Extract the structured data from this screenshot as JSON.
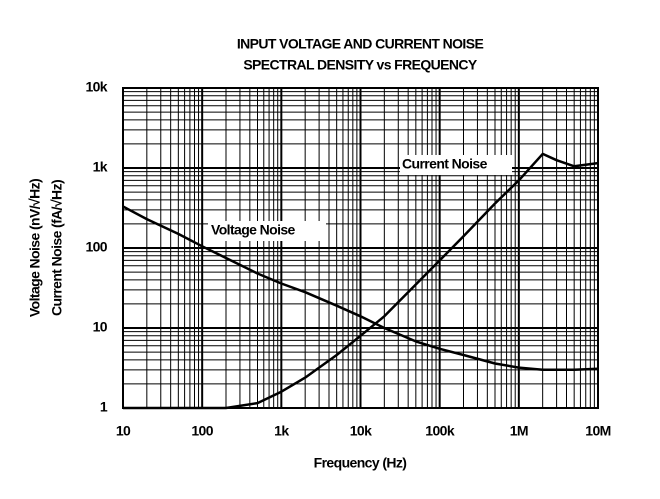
{
  "chart_data": {
    "type": "line",
    "title": "INPUT VOLTAGE AND CURRENT NOISE",
    "subtitle": "SPECTRAL DENSITY vs FREQUENCY",
    "x_label": "Frequency (Hz)",
    "y_labels": [
      "Voltage Noise (nV/√Hz)",
      "Current Noise (fA/√Hz)"
    ],
    "annotations": [
      "Current Noise",
      "Voltage Noise"
    ],
    "x": [
      10,
      20,
      50,
      100,
      200,
      500,
      1000,
      2000,
      5000,
      10000,
      20000,
      50000,
      100000,
      200000,
      500000,
      1000000,
      2000000,
      3000000,
      5000000,
      10000000
    ],
    "series": [
      {
        "name": "Voltage Noise",
        "color": "#000000",
        "values": [
          330,
          230,
          150,
          105,
          75,
          48,
          36,
          28,
          19,
          14,
          10,
          6.8,
          5.5,
          4.6,
          3.6,
          3.2,
          3.0,
          3.0,
          3.0,
          3.1
        ]
      },
      {
        "name": "Current Noise",
        "color": "#000000",
        "values": [
          1,
          1,
          1,
          1,
          1,
          1.15,
          1.6,
          2.4,
          4.6,
          8,
          14,
          35,
          70,
          140,
          360,
          700,
          1500,
          1250,
          1050,
          1150
        ]
      }
    ],
    "xscale": "log",
    "yscale": "log",
    "xlim": [
      10,
      10000000
    ],
    "ylim": [
      1,
      10000
    ],
    "xticks": [
      10,
      100,
      {
        "value": 1000,
        "label": "1k"
      },
      {
        "value": 10000,
        "label": "10k"
      },
      {
        "value": 100000,
        "label": "100k"
      },
      {
        "value": 1000000,
        "label": "1M"
      },
      {
        "value": 10000000,
        "label": "10M"
      }
    ],
    "yticks": [
      1,
      10,
      100,
      {
        "value": 1000,
        "label": "1k"
      },
      {
        "value": 10000,
        "label": "10k"
      }
    ],
    "grid": true
  }
}
